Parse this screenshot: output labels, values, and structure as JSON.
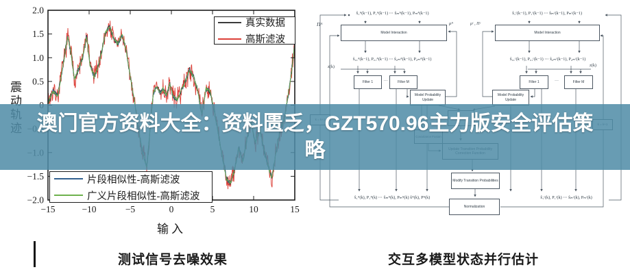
{
  "banner": {
    "text_line1": "澳门官方资料大全：资料匮乏，GZT570.96主力版安全评估策",
    "text_line2": "略",
    "bg_color": "#4f8ca6",
    "bg_opacity": 0.86,
    "text_color": "#ffffff"
  },
  "left_figure": {
    "caption": "测试信号去噪效果"
  },
  "right_figure": {
    "caption": "交互多模型状态并行估计"
  },
  "chart_data": {
    "type": "line",
    "title": "",
    "xlabel": "输入",
    "ylabel": "震动轨迹",
    "xlim": [
      -15,
      15
    ],
    "ylim": [
      -2,
      2
    ],
    "xticks": [
      -15,
      -10,
      -5,
      0,
      5,
      10,
      15
    ],
    "yticks": [
      -2,
      -1.5,
      -1,
      -0.5,
      0,
      0.5,
      1,
      1.5,
      2
    ],
    "grid": false,
    "legend_positions": [
      "top-right",
      "bottom-left"
    ],
    "note": "Four heavily overlapping noisy traces of one vibration signal; red Gaussian-filter trace has the widest noise envelope.",
    "trend": {
      "x": [
        -15,
        -14.4,
        -13.8,
        -13.2,
        -12.6,
        -12.2,
        -11.8,
        -11.3,
        -10.8,
        -10.3,
        -9.9,
        -9.4,
        -9.0,
        -8.5,
        -8.0,
        -7.5,
        -7.0,
        -6.5,
        -6.0,
        -5.5,
        -5.0,
        -4.5,
        -4.0,
        -3.5,
        -3.0,
        -2.6,
        -2.2,
        -1.8,
        -1.4,
        -1.0,
        -0.6,
        -0.2,
        0.2,
        0.7,
        1.2,
        1.7,
        2.2,
        2.7,
        3.2,
        3.7,
        4.2,
        4.7,
        5.2,
        5.7,
        6.2,
        6.7,
        7.2,
        7.7,
        8.2,
        8.7,
        9.2,
        9.7,
        10.2,
        10.7,
        11.2,
        11.7,
        12.2,
        12.7,
        13.2,
        13.7,
        14.2,
        14.6,
        15
      ],
      "y": [
        0.05,
        0.3,
        0.2,
        0.8,
        1.45,
        1.1,
        0.55,
        0.75,
        1.0,
        1.45,
        0.85,
        0.6,
        0.75,
        1.1,
        1.55,
        1.65,
        1.4,
        1.3,
        1.5,
        1.15,
        0.6,
        0.1,
        -0.5,
        -1.0,
        -1.3,
        -0.55,
        0.25,
        0.4,
        0.25,
        0.35,
        0.2,
        0.45,
        0.2,
        0.1,
        0.3,
        0.5,
        0.75,
        0.6,
        0.3,
        -0.2,
        0.35,
        0.3,
        -0.1,
        -0.6,
        -1.1,
        -1.55,
        -1.65,
        -1.35,
        -0.9,
        -1.2,
        -0.7,
        -0.35,
        -0.8,
        -0.45,
        -0.9,
        -1.25,
        -1.55,
        -1.0,
        -0.55,
        -0.3,
        0.2,
        0.7,
        1.3
      ]
    },
    "series": [
      {
        "name": "真实数据",
        "color": "#3a3a3a",
        "noise": 0.07,
        "seed": 3,
        "width": 1.1
      },
      {
        "name": "高斯滤波",
        "color": "#dc4038",
        "noise": 0.27,
        "seed": 7,
        "width": 0.9
      },
      {
        "name": "片段相似性-高斯滤波",
        "color": "#31608f",
        "noise": 0.05,
        "seed": 11,
        "width": 0.9
      },
      {
        "name": "广义片段相似性-高斯滤波",
        "color": "#6db14c",
        "noise": 0.04,
        "seed": 13,
        "width": 0.9
      }
    ]
  },
  "flowchart": {
    "pi_a": "Πᴬ",
    "mu_a": "μᴬ",
    "mu_pi_c": "μᶜ , Πᶜ",
    "top_formula_a": "x̂₁ᴬ(k−1), P₁ᴬ(k−1)  ⋯  x̂ₘᴬ(k−1), Pₘᴬ(k−1)",
    "top_formula_c": "x̂₁ᶜ(k−1), P₁ᶜ(k−1)  ⋯  x̂ₘᶜ(k−1), Pₘᶜ(k−1)",
    "model_interaction": "Model Interaction",
    "mid_formula_a": "x̂₀₁ᴬ(k−1), P₀₁ᴬ(k−1)  ⋯  x̂₀ₘᴬ(k−1), P₀ₘᴬ(k−1)",
    "mid_formula_c": "x̂₀₁ᶜ(k−1), P₀₁ᶜ(k−1)  ⋯  x̂₀ₘᶜ(k−1), P₀ₘᶜ(k−1)",
    "z_input": "z(k)",
    "filter_1": "Filter 1",
    "filter_m": "Filter M",
    "dots": "···",
    "model_prob_update": "Model Probability Update",
    "covariance_fusion": "Covariance Fusion",
    "update_transition": "Update Transition Probability Correction Function",
    "modify_transition": "Modify Transition Probabilities",
    "normalization": "Normalization",
    "k_update": "k = k+1",
    "bottom_formula_a": "x̂₁ᴬ(k), P₁ᴬ(k) ⋯ x̂ₘᴬ(k), Pₘᴬ(k)   x̂ᴬ(k), Pᴬ(k)",
    "bottom_formula_c": "x̂₁ᶜ(k), P₁ᶜ(k) ⋯ x̂ₘᶜ(k), Pₘᶜ(k)"
  }
}
